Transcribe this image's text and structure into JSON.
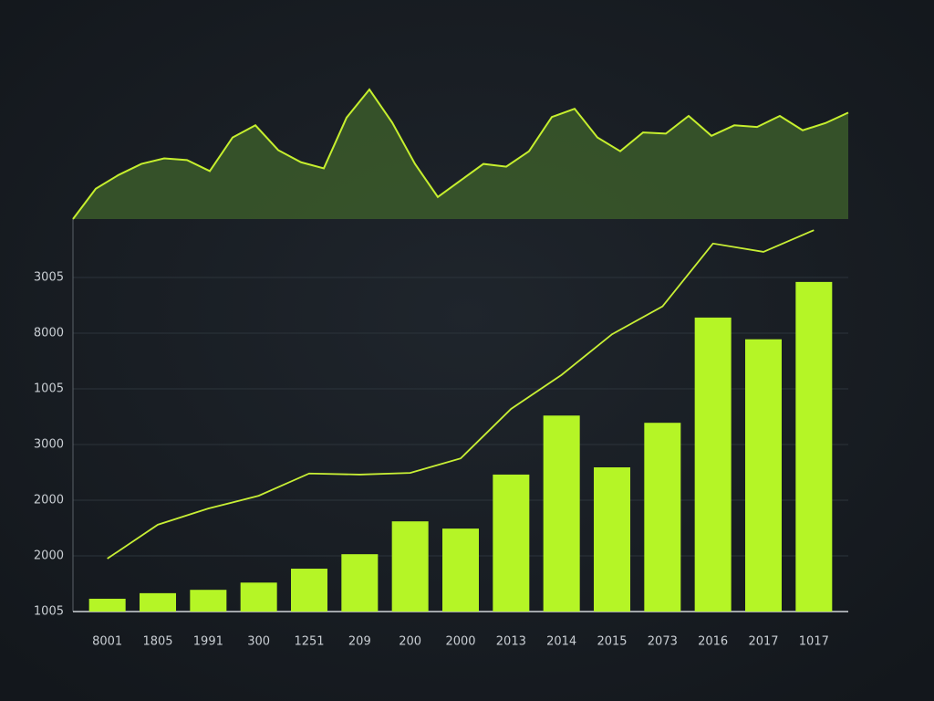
{
  "chart_data": [
    {
      "type": "area",
      "color": "#c6ef2e",
      "fill": "#3b5a2a",
      "values": [
        0,
        0.55,
        0.8,
        1.0,
        1.1,
        1.07,
        0.87,
        1.48,
        1.7,
        1.25,
        1.03,
        0.92,
        1.84,
        2.35,
        1.75,
        1.0,
        0.4,
        0.7,
        1.0,
        0.95,
        1.23,
        1.85,
        2.0,
        1.48,
        1.23,
        1.57,
        1.55,
        1.87,
        1.51,
        1.7,
        1.67,
        1.87,
        1.61,
        1.74,
        1.93
      ],
      "ylim": [
        0,
        2.4
      ]
    },
    {
      "type": "bar",
      "categories": [
        "8001",
        "1805",
        "1991",
        "300",
        "1251",
        "209",
        "200",
        "2000",
        "2013",
        "2014",
        "2015",
        "2073",
        "2016",
        "2017",
        "1017"
      ],
      "series": [
        {
          "type": "bar",
          "color": "#b5f526",
          "values": [
            0.23,
            0.33,
            0.39,
            0.52,
            0.77,
            1.03,
            1.62,
            1.49,
            2.46,
            3.52,
            2.59,
            3.39,
            5.28,
            4.89,
            5.92
          ]
        },
        {
          "type": "line",
          "color": "#c8ef35",
          "values": [
            0.95,
            1.56,
            1.85,
            2.08,
            2.48,
            2.46,
            2.49,
            2.75,
            3.64,
            4.25,
            4.98,
            5.48,
            6.61,
            6.46,
            6.85
          ]
        }
      ],
      "ylim": [
        0,
        7
      ],
      "yticks": [
        {
          "value": 0,
          "label": "1005"
        },
        {
          "value": 1,
          "label": "2000"
        },
        {
          "value": 2,
          "label": "2000"
        },
        {
          "value": 3,
          "label": "3000"
        },
        {
          "value": 4,
          "label": "1005"
        },
        {
          "value": 5,
          "label": "8000"
        },
        {
          "value": 6,
          "label": "3005"
        }
      ],
      "grid": true
    }
  ]
}
